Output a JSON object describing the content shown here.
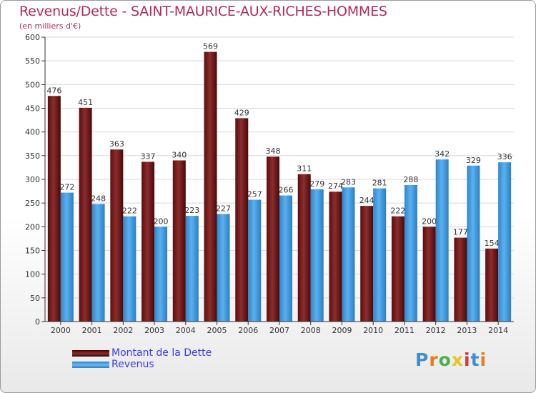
{
  "title": "Revenus/Dette - SAINT-MAURICE-AUX-RICHES-HOMMES",
  "subtitle": "(en milliers d'€)",
  "colors": {
    "debt": "#7a1f1f",
    "revenue": "#3d9be0",
    "title": "#b22a5a",
    "legend_text": "#3a3af0"
  },
  "chart_data": {
    "type": "bar",
    "categories": [
      "2000",
      "2001",
      "2002",
      "2003",
      "2004",
      "2005",
      "2006",
      "2007",
      "2008",
      "2009",
      "2010",
      "2011",
      "2012",
      "2013",
      "2014"
    ],
    "series": [
      {
        "name": "Montant de la Dette",
        "values": [
          476,
          451,
          363,
          337,
          340,
          569,
          429,
          348,
          311,
          274,
          244,
          222,
          200,
          177,
          154
        ]
      },
      {
        "name": "Revenus",
        "values": [
          272,
          248,
          222,
          200,
          223,
          227,
          257,
          266,
          279,
          283,
          281,
          288,
          342,
          329,
          336
        ]
      }
    ],
    "ylim": [
      0,
      600
    ],
    "yticks": [
      0,
      50,
      100,
      150,
      200,
      250,
      300,
      350,
      400,
      450,
      500,
      550,
      600
    ],
    "grid": true
  },
  "legend": [
    {
      "label": "Montant de la Dette",
      "icon": "dark-red-bar-swatch"
    },
    {
      "label": "Revenus",
      "icon": "blue-bar-swatch"
    }
  ],
  "logo": {
    "text": "Proxiti"
  }
}
